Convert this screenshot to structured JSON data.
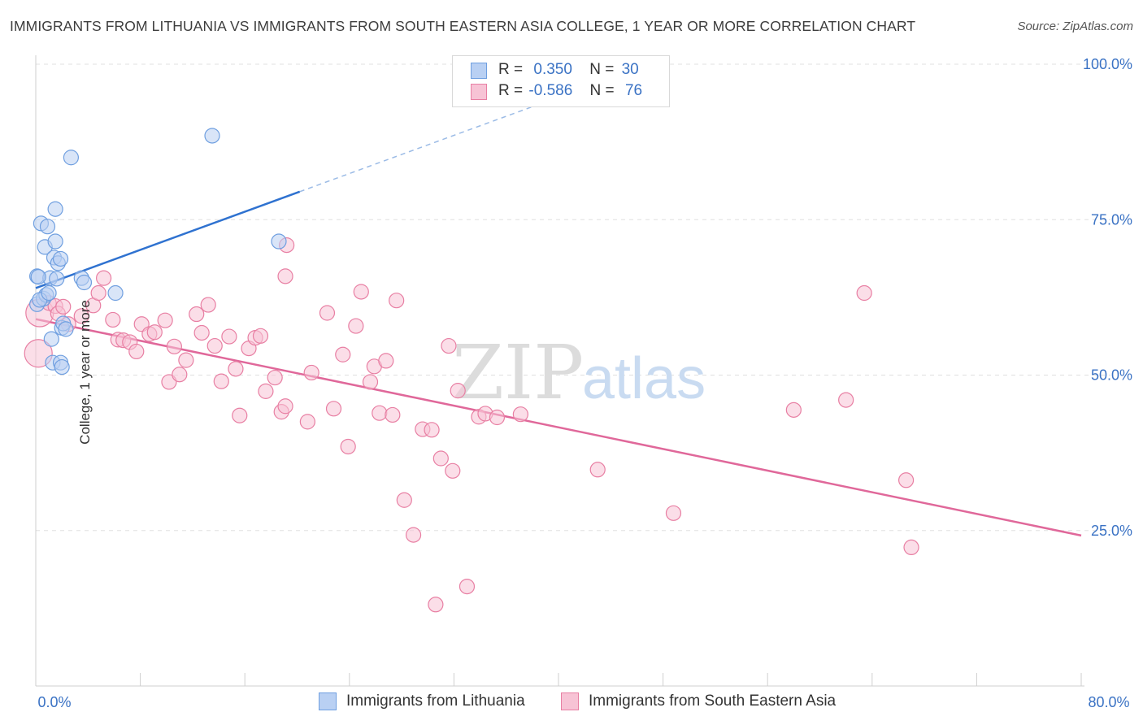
{
  "title": "IMMIGRANTS FROM LITHUANIA VS IMMIGRANTS FROM SOUTH EASTERN ASIA COLLEGE, 1 YEAR OR MORE CORRELATION CHART",
  "source": "Source: ZipAtlas.com",
  "watermark": {
    "zip": "ZIP",
    "atlas": "atlas"
  },
  "legend": {
    "rows": [
      {
        "r_label": "R =",
        "r_value": "0.350",
        "n_label": "N =",
        "n_value": "30"
      },
      {
        "r_label": "R =",
        "r_value": "-0.586",
        "n_label": "N =",
        "n_value": "76"
      }
    ]
  },
  "chart_data": {
    "type": "scatter",
    "title": "IMMIGRANTS FROM LITHUANIA VS IMMIGRANTS FROM SOUTH EASTERN ASIA COLLEGE, 1 YEAR OR MORE CORRELATION CHART",
    "xlabel": "",
    "ylabel": "College, 1 year or more",
    "xlim": [
      0,
      80
    ],
    "ylim": [
      0,
      105
    ],
    "x_tick_labels": [
      "0.0%",
      "80.0%"
    ],
    "y_ticks": [
      25,
      50,
      75,
      100
    ],
    "y_tick_labels": [
      "25.0%",
      "50.0%",
      "75.0%",
      "100.0%"
    ],
    "grid": true,
    "legend_position": "top-center",
    "series": [
      {
        "name": "Immigrants from Lithuania",
        "color": "#6f9fe0",
        "fill": "#b9d0f3",
        "R": 0.35,
        "N": 30,
        "trend": {
          "x0": 0,
          "y0": 64,
          "x1": 20.2,
          "y1": 79.5,
          "dashed_to_x": 40,
          "dashed_to_y": 94.7
        },
        "points": [
          [
            0.1,
            65.9
          ],
          [
            0.1,
            61.4
          ],
          [
            0.4,
            74.4
          ],
          [
            0.6,
            62.3
          ],
          [
            0.7,
            70.6
          ],
          [
            0.8,
            62.9
          ],
          [
            0.9,
            73.9
          ],
          [
            1.1,
            65.6
          ],
          [
            1.2,
            55.8
          ],
          [
            1.3,
            52.0
          ],
          [
            1.4,
            68.9
          ],
          [
            1.5,
            71.5
          ],
          [
            1.5,
            76.7
          ],
          [
            1.6,
            65.5
          ],
          [
            1.7,
            68.0
          ],
          [
            1.9,
            52.0
          ],
          [
            1.9,
            68.7
          ],
          [
            2.0,
            51.3
          ],
          [
            2.0,
            57.6
          ],
          [
            2.1,
            58.3
          ],
          [
            2.3,
            57.4
          ],
          [
            2.7,
            85.0
          ],
          [
            3.5,
            65.6
          ],
          [
            3.7,
            64.9
          ],
          [
            6.1,
            63.2
          ],
          [
            13.5,
            88.5
          ],
          [
            18.6,
            71.5
          ],
          [
            0.2,
            65.8
          ],
          [
            0.3,
            62.1
          ],
          [
            1.0,
            63.2
          ]
        ]
      },
      {
        "name": "Immigrants from South Eastern Asia",
        "color": "#e87fa3",
        "fill": "#f7c3d5",
        "R": -0.586,
        "N": 76,
        "trend": {
          "x0": 0,
          "y0": 59,
          "x1": 80,
          "y1": 24.2
        },
        "points": [
          [
            0.2,
            53.5
          ],
          [
            0.3,
            60.0
          ],
          [
            1.0,
            61.6
          ],
          [
            1.5,
            61.1
          ],
          [
            1.7,
            59.9
          ],
          [
            2.1,
            61.0
          ],
          [
            2.5,
            58.2
          ],
          [
            3.5,
            59.5
          ],
          [
            4.4,
            61.2
          ],
          [
            4.8,
            63.2
          ],
          [
            5.2,
            65.6
          ],
          [
            5.9,
            58.9
          ],
          [
            6.3,
            55.7
          ],
          [
            6.7,
            55.6
          ],
          [
            7.2,
            55.3
          ],
          [
            7.7,
            53.8
          ],
          [
            8.1,
            58.2
          ],
          [
            8.7,
            56.6
          ],
          [
            9.1,
            56.9
          ],
          [
            9.9,
            58.8
          ],
          [
            10.2,
            48.9
          ],
          [
            10.6,
            54.6
          ],
          [
            11.0,
            50.1
          ],
          [
            11.5,
            52.4
          ],
          [
            12.3,
            59.8
          ],
          [
            12.7,
            56.8
          ],
          [
            13.2,
            61.3
          ],
          [
            13.7,
            54.7
          ],
          [
            14.2,
            49.0
          ],
          [
            14.8,
            56.2
          ],
          [
            15.3,
            51.0
          ],
          [
            15.6,
            43.5
          ],
          [
            16.3,
            54.3
          ],
          [
            16.8,
            56.0
          ],
          [
            17.2,
            56.3
          ],
          [
            17.6,
            47.4
          ],
          [
            18.3,
            49.6
          ],
          [
            19.2,
            70.9
          ],
          [
            19.1,
            65.9
          ],
          [
            18.8,
            44.1
          ],
          [
            19.1,
            45.0
          ],
          [
            20.8,
            42.5
          ],
          [
            21.1,
            50.4
          ],
          [
            22.3,
            60.0
          ],
          [
            22.8,
            44.6
          ],
          [
            23.5,
            53.3
          ],
          [
            23.9,
            38.5
          ],
          [
            24.5,
            57.9
          ],
          [
            24.9,
            63.4
          ],
          [
            25.6,
            48.9
          ],
          [
            25.9,
            51.4
          ],
          [
            26.3,
            43.9
          ],
          [
            26.8,
            52.3
          ],
          [
            27.3,
            43.6
          ],
          [
            27.6,
            62.0
          ],
          [
            28.2,
            29.9
          ],
          [
            28.9,
            24.3
          ],
          [
            29.6,
            41.3
          ],
          [
            30.3,
            41.2
          ],
          [
            30.6,
            13.1
          ],
          [
            31.0,
            36.6
          ],
          [
            31.6,
            54.7
          ],
          [
            31.9,
            34.6
          ],
          [
            32.3,
            47.5
          ],
          [
            33.0,
            16.0
          ],
          [
            33.9,
            43.3
          ],
          [
            34.4,
            43.8
          ],
          [
            35.3,
            43.2
          ],
          [
            37.1,
            43.7
          ],
          [
            43.0,
            34.8
          ],
          [
            48.8,
            27.8
          ],
          [
            58.0,
            44.4
          ],
          [
            62.0,
            46.0
          ],
          [
            63.4,
            63.2
          ],
          [
            66.6,
            33.1
          ],
          [
            67.0,
            22.3
          ]
        ]
      }
    ]
  },
  "bottom_legend": [
    "Immigrants from Lithuania",
    "Immigrants from South Eastern Asia"
  ]
}
